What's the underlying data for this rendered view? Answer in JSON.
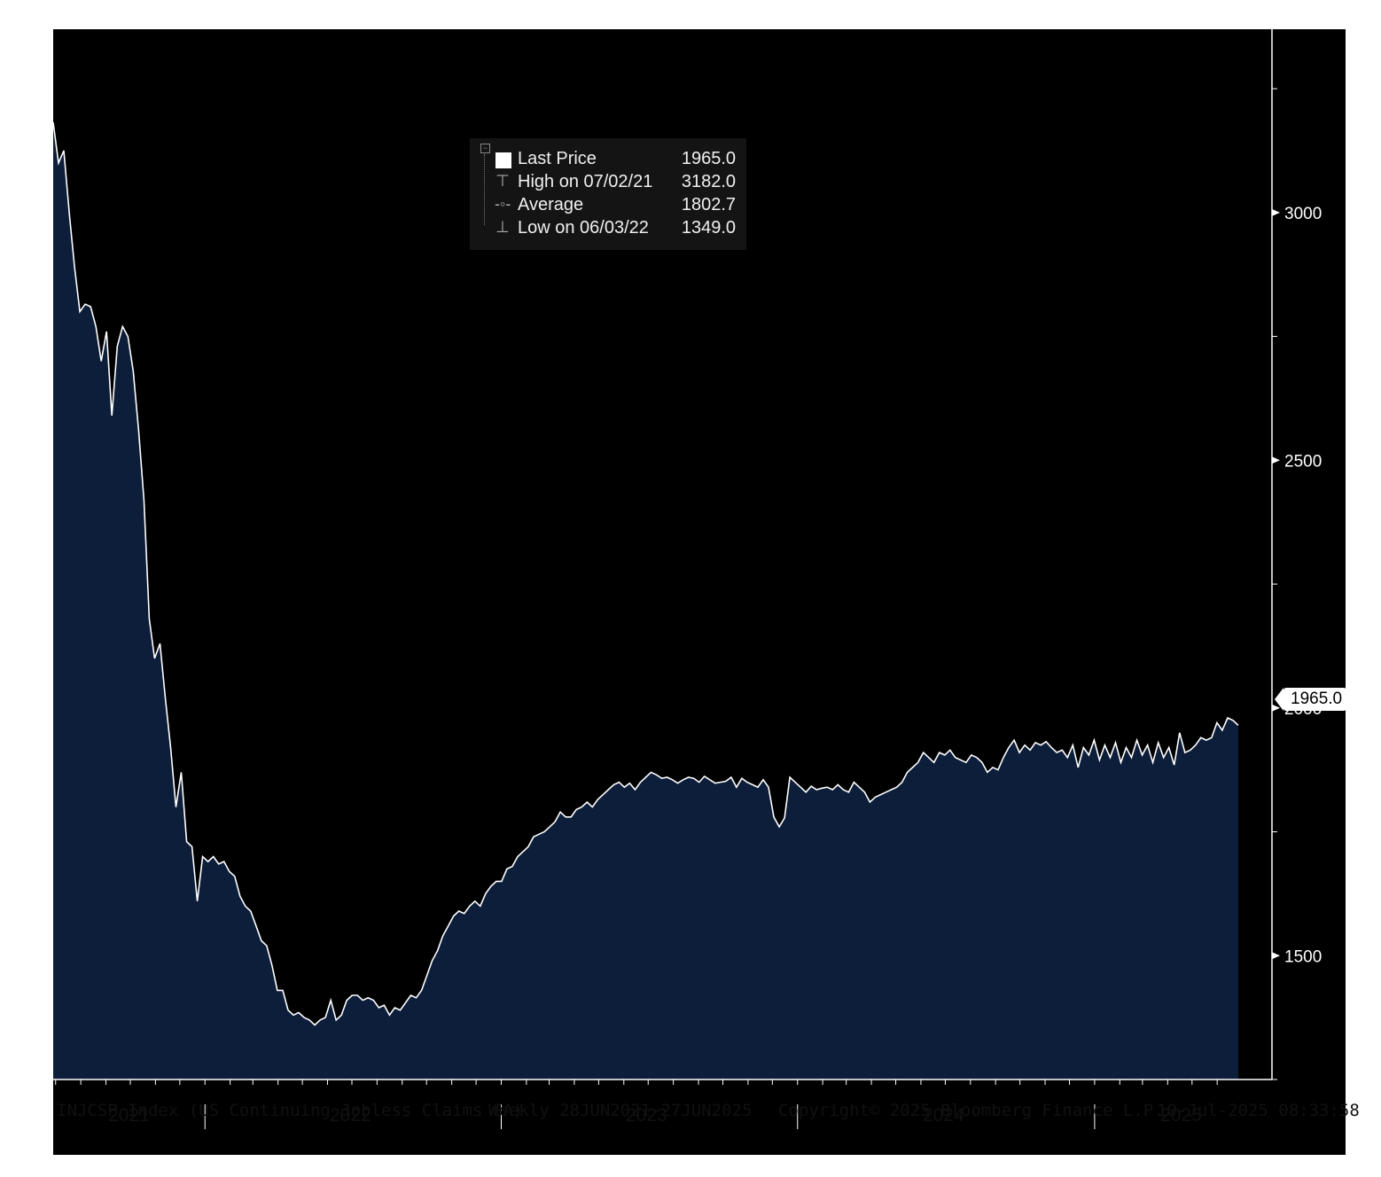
{
  "legend": {
    "rows": [
      {
        "label": "Last Price",
        "value": "1965.0"
      },
      {
        "label": "High on 07/02/21",
        "value": "3182.0"
      },
      {
        "label": "Average",
        "value": "1802.7"
      },
      {
        "label": "Low on 06/03/22",
        "value": "1349.0"
      }
    ]
  },
  "last_badge": "1965.0",
  "footer": {
    "ticker": "INJCSP Index (US Continuing Jobless Claims SA)",
    "range": "Weekly 28JUN2021-27JUN2025",
    "copyright": "Copyright© 2025 Bloomberg Finance L.P.",
    "timestamp": "10-Jul-2025 08:33:58"
  },
  "colors": {
    "background": "#000000",
    "area": "#0d1e3a",
    "line": "#ffffff",
    "axis": "#ffffff"
  },
  "chart_data": {
    "type": "area",
    "grid": false,
    "x_axis": {
      "labels": [
        "2021",
        "2022",
        "2023",
        "2024",
        "2025"
      ]
    },
    "y_axis": {
      "position": "right",
      "ticks": [
        1500,
        2000,
        2500,
        3000
      ],
      "ylim": [
        1250,
        3370
      ]
    },
    "series": [
      {
        "x_start": "2021-06-28",
        "x_end": "2025-06-27",
        "frequency": "weekly",
        "values": [
          3182,
          3100,
          3125,
          3000,
          2890,
          2800,
          2815,
          2810,
          2770,
          2700,
          2760,
          2590,
          2730,
          2770,
          2750,
          2680,
          2560,
          2420,
          2180,
          2100,
          2130,
          2020,
          1920,
          1800,
          1870,
          1730,
          1720,
          1610,
          1700,
          1690,
          1700,
          1685,
          1690,
          1670,
          1660,
          1620,
          1600,
          1590,
          1560,
          1530,
          1520,
          1480,
          1430,
          1430,
          1390,
          1380,
          1385,
          1375,
          1370,
          1360,
          1370,
          1375,
          1410,
          1370,
          1380,
          1410,
          1420,
          1420,
          1410,
          1415,
          1410,
          1395,
          1400,
          1380,
          1395,
          1390,
          1405,
          1420,
          1415,
          1430,
          1460,
          1490,
          1510,
          1540,
          1560,
          1580,
          1590,
          1585,
          1600,
          1610,
          1600,
          1625,
          1640,
          1650,
          1650,
          1675,
          1680,
          1700,
          1710,
          1720,
          1740,
          1745,
          1750,
          1760,
          1770,
          1790,
          1780,
          1780,
          1795,
          1800,
          1810,
          1800,
          1815,
          1825,
          1835,
          1845,
          1850,
          1840,
          1848,
          1835,
          1850,
          1860,
          1870,
          1865,
          1858,
          1860,
          1855,
          1848,
          1855,
          1860,
          1858,
          1850,
          1862,
          1855,
          1848,
          1850,
          1852,
          1860,
          1840,
          1858,
          1850,
          1845,
          1840,
          1855,
          1840,
          1780,
          1760,
          1778,
          1860,
          1850,
          1840,
          1830,
          1842,
          1835,
          1838,
          1840,
          1835,
          1845,
          1835,
          1830,
          1850,
          1840,
          1830,
          1810,
          1820,
          1825,
          1830,
          1835,
          1840,
          1850,
          1870,
          1880,
          1890,
          1910,
          1900,
          1890,
          1910,
          1905,
          1915,
          1900,
          1895,
          1890,
          1905,
          1900,
          1890,
          1870,
          1880,
          1875,
          1900,
          1920,
          1935,
          1910,
          1925,
          1915,
          1930,
          1925,
          1932,
          1920,
          1910,
          1915,
          1900,
          1925,
          1880,
          1920,
          1905,
          1935,
          1895,
          1925,
          1900,
          1930,
          1890,
          1920,
          1900,
          1935,
          1905,
          1925,
          1890,
          1930,
          1900,
          1920,
          1885,
          1950,
          1910,
          1915,
          1925,
          1940,
          1935,
          1940,
          1970,
          1955,
          1980,
          1975,
          1965
        ]
      }
    ]
  }
}
